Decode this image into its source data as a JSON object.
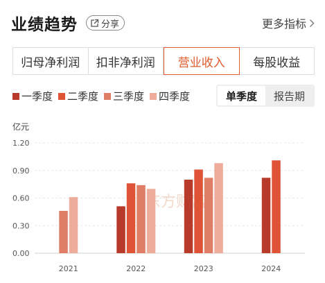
{
  "header": {
    "title": "业绩趋势",
    "share_label": "分享",
    "more_label": "更多指标"
  },
  "tabs": [
    {
      "label": "归母净利润",
      "active": false
    },
    {
      "label": "扣非净利润",
      "active": false
    },
    {
      "label": "营业收入",
      "active": true
    },
    {
      "label": "每股收益",
      "active": false
    }
  ],
  "legend": [
    {
      "label": "一季度",
      "color": "#b83a2a"
    },
    {
      "label": "二季度",
      "color": "#df5437"
    },
    {
      "label": "三季度",
      "color": "#e07d66"
    },
    {
      "label": "四季度",
      "color": "#eeac9b"
    }
  ],
  "mode": {
    "options": [
      {
        "label": "单季度",
        "active": true
      },
      {
        "label": "报告期",
        "active": false
      }
    ]
  },
  "watermark": "东方财富",
  "chart_data": {
    "type": "bar",
    "unit": "亿元",
    "categories": [
      "2021",
      "2022",
      "2023",
      "2024"
    ],
    "series": [
      {
        "name": "一季度",
        "color": "#b83a2a",
        "values": [
          null,
          0.51,
          0.8,
          0.82
        ]
      },
      {
        "name": "二季度",
        "color": "#df5437",
        "values": [
          null,
          0.76,
          0.91,
          1.01
        ]
      },
      {
        "name": "三季度",
        "color": "#e07d66",
        "values": [
          0.46,
          0.74,
          0.82,
          null
        ]
      },
      {
        "name": "四季度",
        "color": "#eeac9b",
        "values": [
          0.61,
          0.7,
          0.98,
          null
        ]
      }
    ],
    "yticks": [
      "0.00",
      "0.30",
      "0.60",
      "0.90",
      "1.20"
    ],
    "ylim": [
      0,
      1.2
    ],
    "grid": true,
    "legend_position": "top-left"
  }
}
